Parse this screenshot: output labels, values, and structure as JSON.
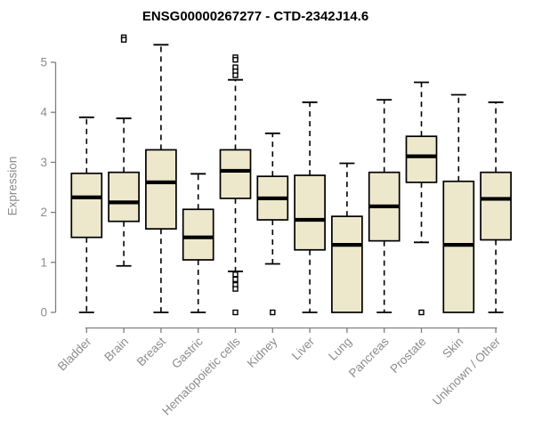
{
  "chart_data": {
    "type": "boxplot",
    "title": "ENSG00000267277 - CTD-2342J14.6",
    "ylabel": "Expression",
    "yticks": [
      0,
      1,
      2,
      3,
      4,
      5
    ],
    "ylim": [
      0,
      5.5
    ],
    "grid": false,
    "legend": "none",
    "categories": [
      "Bladder",
      "Brain",
      "Breast",
      "Gastric",
      "Hematopoietic cells",
      "Kidney",
      "Liver",
      "Lung",
      "Pancreas",
      "Prostate",
      "Skin",
      "Unknown / Other"
    ],
    "boxes": [
      {
        "label": "Bladder",
        "low": 0,
        "q1": 1.5,
        "median": 2.3,
        "q3": 2.78,
        "high": 3.9,
        "outliers": []
      },
      {
        "label": "Brain",
        "low": 0.93,
        "q1": 1.82,
        "median": 2.2,
        "q3": 2.8,
        "high": 3.88,
        "outliers": [
          5.5,
          5.45
        ]
      },
      {
        "label": "Breast",
        "low": 0,
        "q1": 1.67,
        "median": 2.6,
        "q3": 3.25,
        "high": 5.35,
        "outliers": []
      },
      {
        "label": "Gastric",
        "low": 0,
        "q1": 1.05,
        "median": 1.5,
        "q3": 2.06,
        "high": 2.77,
        "outliers": []
      },
      {
        "label": "Hematopoietic cells",
        "low": 0.82,
        "q1": 2.28,
        "median": 2.83,
        "q3": 3.25,
        "high": 4.65,
        "outliers": [
          5.1,
          5.05,
          4.9,
          4.82,
          4.74,
          0.76,
          0.66,
          0.55,
          0.47,
          0
        ]
      },
      {
        "label": "Kidney",
        "low": 0.97,
        "q1": 1.85,
        "median": 2.28,
        "q3": 2.72,
        "high": 3.58,
        "outliers": [
          0
        ]
      },
      {
        "label": "Liver",
        "low": 0,
        "q1": 1.25,
        "median": 1.85,
        "q3": 2.74,
        "high": 4.2,
        "outliers": []
      },
      {
        "label": "Lung",
        "low": 0,
        "q1": 0,
        "median": 1.35,
        "q3": 1.92,
        "high": 2.98,
        "outliers": []
      },
      {
        "label": "Pancreas",
        "low": 0,
        "q1": 1.43,
        "median": 2.12,
        "q3": 2.8,
        "high": 4.25,
        "outliers": []
      },
      {
        "label": "Prostate",
        "low": 1.4,
        "q1": 2.6,
        "median": 3.12,
        "q3": 3.52,
        "high": 4.6,
        "outliers": [
          0
        ]
      },
      {
        "label": "Skin",
        "low": 0,
        "q1": 0,
        "median": 1.35,
        "q3": 2.62,
        "high": 4.35,
        "outliers": []
      },
      {
        "label": "Unknown / Other",
        "low": 0,
        "q1": 1.45,
        "median": 2.27,
        "q3": 2.8,
        "high": 4.2,
        "outliers": []
      }
    ],
    "colors": {
      "box_fill": "#EDE8CC",
      "box_border": "#000000",
      "median": "#000000",
      "whisker": "#000000",
      "axis": "#7f7f7f",
      "tick_label": "#8c8c8c",
      "title": "#000000",
      "background": "#ffffff"
    }
  }
}
